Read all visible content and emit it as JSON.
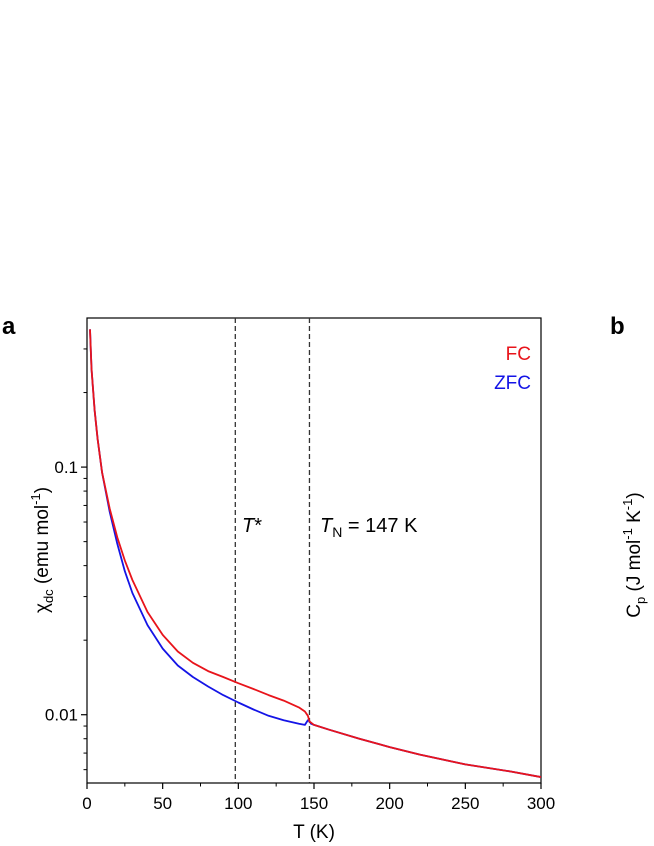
{
  "panels": {
    "a": "a",
    "b": "b"
  },
  "chart_data": {
    "type": "line",
    "xlabel": "T (K)",
    "ylabel": {
      "main": "χ",
      "sub": "dc",
      "rest": " (emu mol",
      "sup": "-1",
      "close": ")"
    },
    "yscale": "log",
    "xlim": [
      0,
      300
    ],
    "ylim": [
      0.0053,
      0.4
    ],
    "xticks": [
      0,
      50,
      100,
      150,
      200,
      250,
      300
    ],
    "yticks": [
      0.01,
      0.1
    ],
    "ytick_labels": [
      "0.01",
      "0.1"
    ],
    "grid": false,
    "legend_position": "top-right",
    "series": [
      {
        "name": "FC",
        "color": "#e8141b",
        "x": [
          2,
          3,
          5,
          7,
          10,
          15,
          20,
          25,
          30,
          40,
          50,
          60,
          70,
          80,
          90,
          100,
          110,
          120,
          130,
          140,
          144,
          146,
          147,
          150,
          160,
          180,
          200,
          220,
          250,
          280,
          300
        ],
        "y": [
          0.36,
          0.25,
          0.17,
          0.13,
          0.095,
          0.068,
          0.052,
          0.042,
          0.035,
          0.026,
          0.021,
          0.018,
          0.0162,
          0.015,
          0.0142,
          0.0134,
          0.0127,
          0.012,
          0.0114,
          0.0107,
          0.0103,
          0.0099,
          0.0094,
          0.0091,
          0.0087,
          0.008,
          0.0074,
          0.0069,
          0.0063,
          0.0059,
          0.0056
        ]
      },
      {
        "name": "ZFC",
        "color": "#1414e6",
        "x": [
          2,
          3,
          5,
          7,
          10,
          15,
          20,
          25,
          30,
          40,
          50,
          60,
          70,
          80,
          90,
          100,
          110,
          120,
          130,
          140,
          144,
          145,
          146,
          147,
          148,
          150,
          160,
          180,
          200,
          220,
          250,
          280,
          300
        ],
        "y": [
          0.36,
          0.25,
          0.17,
          0.13,
          0.095,
          0.066,
          0.049,
          0.038,
          0.031,
          0.023,
          0.0185,
          0.0158,
          0.0142,
          0.013,
          0.012,
          0.0112,
          0.0105,
          0.0099,
          0.0095,
          0.0092,
          0.0091,
          0.0093,
          0.0095,
          0.0094,
          0.0092,
          0.0091,
          0.0087,
          0.008,
          0.0074,
          0.0069,
          0.0063,
          0.0059,
          0.0056
        ]
      }
    ],
    "annotations": [
      {
        "label": "T",
        "suffix": "*",
        "x": 98
      },
      {
        "label": "T",
        "sub": "N",
        "text": " = 147 K",
        "x": 147
      }
    ]
  },
  "panel_b": {
    "ylabel": {
      "main": "C",
      "sub": "p",
      "rest": " (J mol",
      "sup1": "-1",
      "mid": " K",
      "sup2": "-1",
      "close": ")"
    }
  }
}
